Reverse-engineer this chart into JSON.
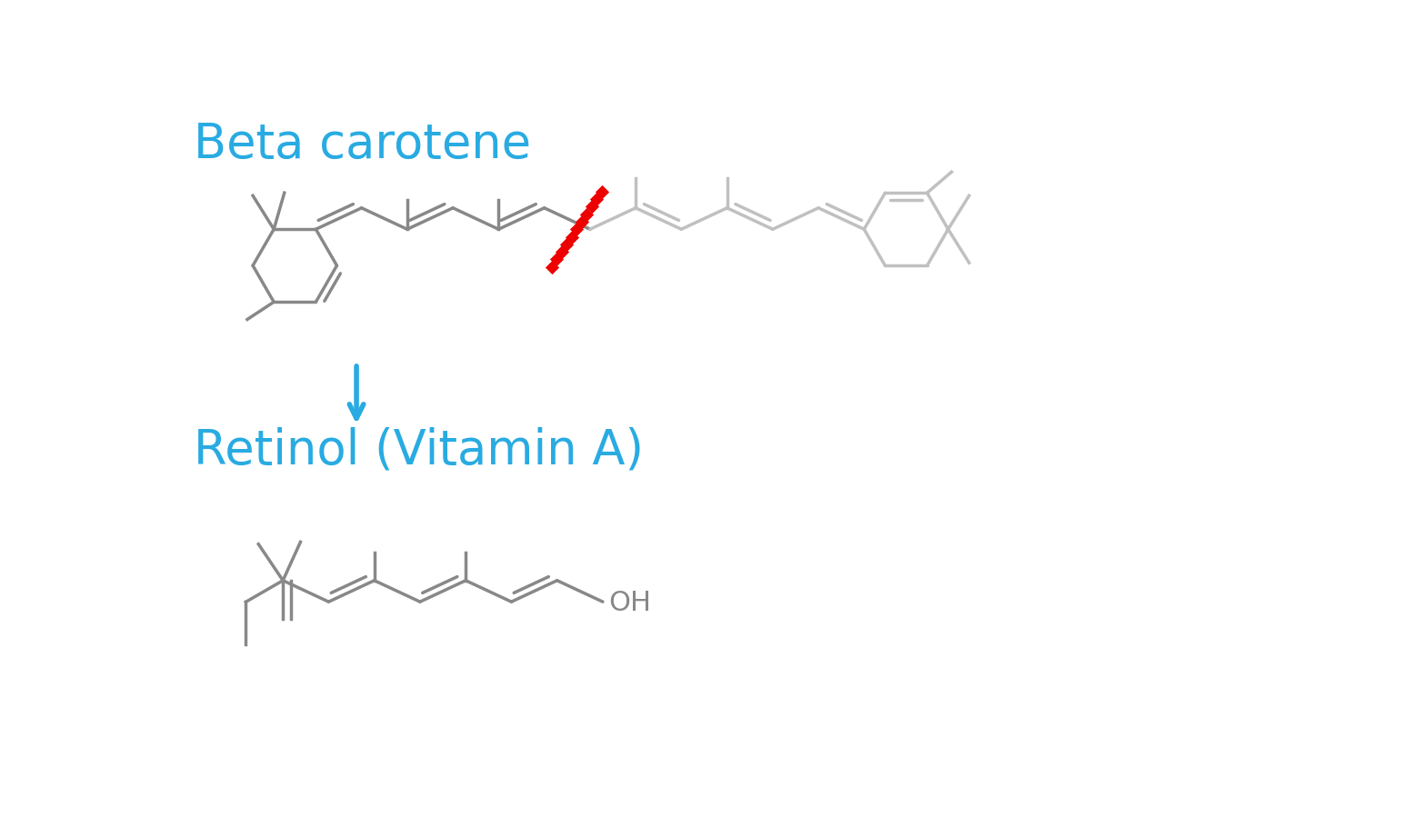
{
  "title_beta": "Beta carotene",
  "title_retinol": "Retinol (Vitamin A)",
  "title_color": "#29ABE2",
  "title_fontsize": 38,
  "mol_color_dark": "#888888",
  "mol_color_light": "#C0C0C0",
  "arrow_color": "#29ABE2",
  "cleavage_color": "#EE0000",
  "oh_color": "#888888",
  "background": "#FFFFFF"
}
